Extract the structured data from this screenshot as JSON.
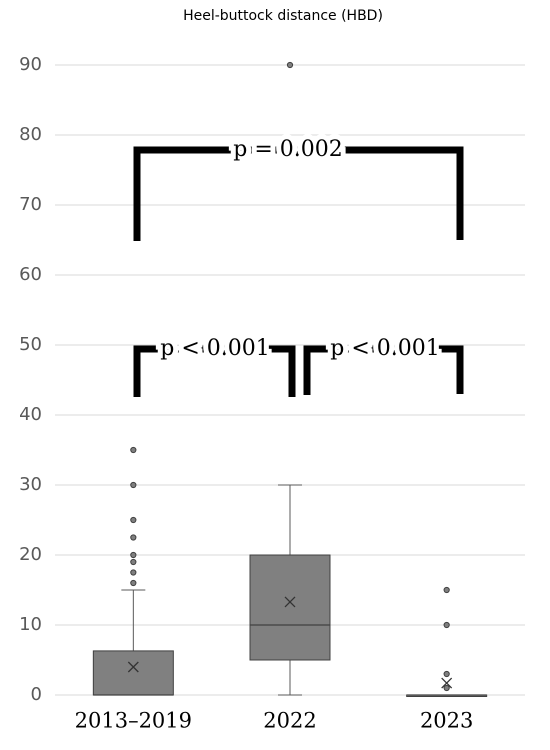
{
  "chart_data": {
    "type": "box",
    "title": "Heel-buttock distance (HBD)",
    "categories": [
      "2013–2019",
      "2022",
      "2023"
    ],
    "boxes": [
      {
        "min": 0,
        "q1": 0,
        "median": 0,
        "q3": 6.3,
        "max": 15,
        "mean": 4,
        "outliers": [
          16,
          17.5,
          19,
          20,
          22.5,
          25,
          30,
          35
        ]
      },
      {
        "min": 0,
        "q1": 5,
        "median": 10,
        "q3": 20,
        "max": 30,
        "mean": 13.3,
        "outliers": [
          90
        ]
      },
      {
        "min": 0,
        "q1": 0,
        "median": 0,
        "q3": 0,
        "max": 0,
        "mean": 1.7,
        "outliers": [
          1,
          3,
          10,
          15
        ]
      }
    ],
    "color": "#808080",
    "ylim": [
      0,
      95
    ],
    "yticks": [
      0,
      10,
      20,
      30,
      40,
      50,
      60,
      70,
      80,
      90
    ],
    "grid": true,
    "annotations": [
      "p = 0.002",
      "p < 0.001",
      "p < 0.001"
    ]
  }
}
